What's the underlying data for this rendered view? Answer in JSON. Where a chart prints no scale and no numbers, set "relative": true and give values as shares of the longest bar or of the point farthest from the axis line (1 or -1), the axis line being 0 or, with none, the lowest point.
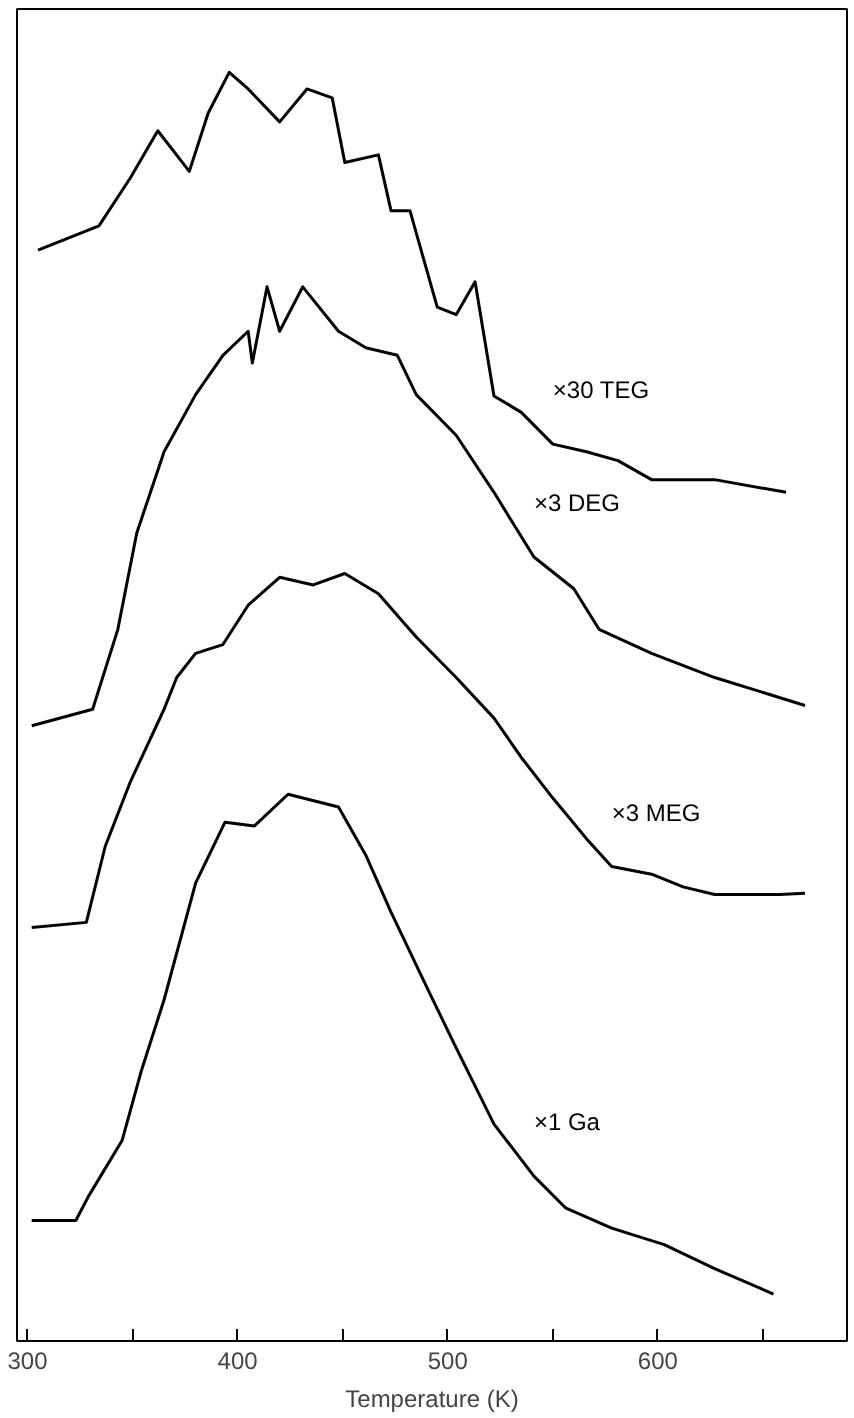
{
  "chart_data": {
    "type": "line",
    "relative": true,
    "xlabel": "Temperature (K)",
    "xlim": [
      295,
      690
    ],
    "xticks": [
      300,
      {
        "value": 350,
        "label": null
      },
      400,
      {
        "value": 450,
        "label": null
      },
      500,
      {
        "value": 550,
        "label": null
      },
      600,
      {
        "value": 650,
        "label": null
      }
    ],
    "tick_labels": "x",
    "grid": false,
    "legend": false,
    "series": [
      {
        "name": "×30 TEG",
        "color": "#000000",
        "x": [
          305,
          334,
          349,
          362,
          377,
          386,
          396,
          405,
          420,
          433,
          445,
          451,
          467,
          473,
          482,
          495,
          504,
          513,
          522,
          535,
          550,
          566,
          581,
          597,
          627,
          661
        ],
        "values": [
          0.86,
          0.879,
          0.917,
          0.954,
          0.922,
          0.968,
          1.0,
          0.987,
          0.961,
          0.987,
          0.98,
          0.929,
          0.935,
          0.891,
          0.891,
          0.815,
          0.809,
          0.835,
          0.745,
          0.732,
          0.707,
          0.701,
          0.694,
          0.679,
          0.679,
          0.669
        ]
      },
      {
        "name": "×3 DEG",
        "color": "#000000",
        "x": [
          302,
          331,
          343,
          352,
          365,
          380,
          393,
          405,
          407,
          414,
          420,
          431,
          448,
          461,
          476,
          485,
          504,
          522,
          541,
          560,
          572,
          597,
          627,
          670
        ],
        "values": [
          0.485,
          0.498,
          0.561,
          0.637,
          0.701,
          0.746,
          0.777,
          0.796,
          0.771,
          0.831,
          0.796,
          0.831,
          0.796,
          0.783,
          0.777,
          0.746,
          0.714,
          0.669,
          0.618,
          0.593,
          0.561,
          0.542,
          0.523,
          0.501
        ]
      },
      {
        "name": "×3 MEG",
        "color": "#000000",
        "x": [
          302,
          328,
          337,
          349,
          365,
          371,
          380,
          393,
          405,
          420,
          436,
          451,
          467,
          485,
          504,
          522,
          535,
          550,
          566,
          578,
          597,
          612,
          627,
          658,
          670
        ],
        "values": [
          0.326,
          0.33,
          0.39,
          0.441,
          0.498,
          0.523,
          0.542,
          0.549,
          0.58,
          0.602,
          0.596,
          0.605,
          0.589,
          0.555,
          0.523,
          0.491,
          0.46,
          0.428,
          0.396,
          0.374,
          0.368,
          0.358,
          0.352,
          0.352,
          0.353
        ]
      },
      {
        "name": "×1 Ga",
        "color": "#000000",
        "x": [
          302,
          323,
          329,
          345,
          354,
          365,
          380,
          394,
          408,
          424,
          448,
          461,
          473,
          490,
          504,
          522,
          541,
          556,
          578,
          603,
          627,
          655
        ],
        "values": [
          0.095,
          0.095,
          0.114,
          0.158,
          0.212,
          0.269,
          0.361,
          0.409,
          0.406,
          0.431,
          0.421,
          0.383,
          0.338,
          0.279,
          0.231,
          0.171,
          0.13,
          0.105,
          0.089,
          0.076,
          0.057,
          0.037
        ]
      }
    ]
  }
}
